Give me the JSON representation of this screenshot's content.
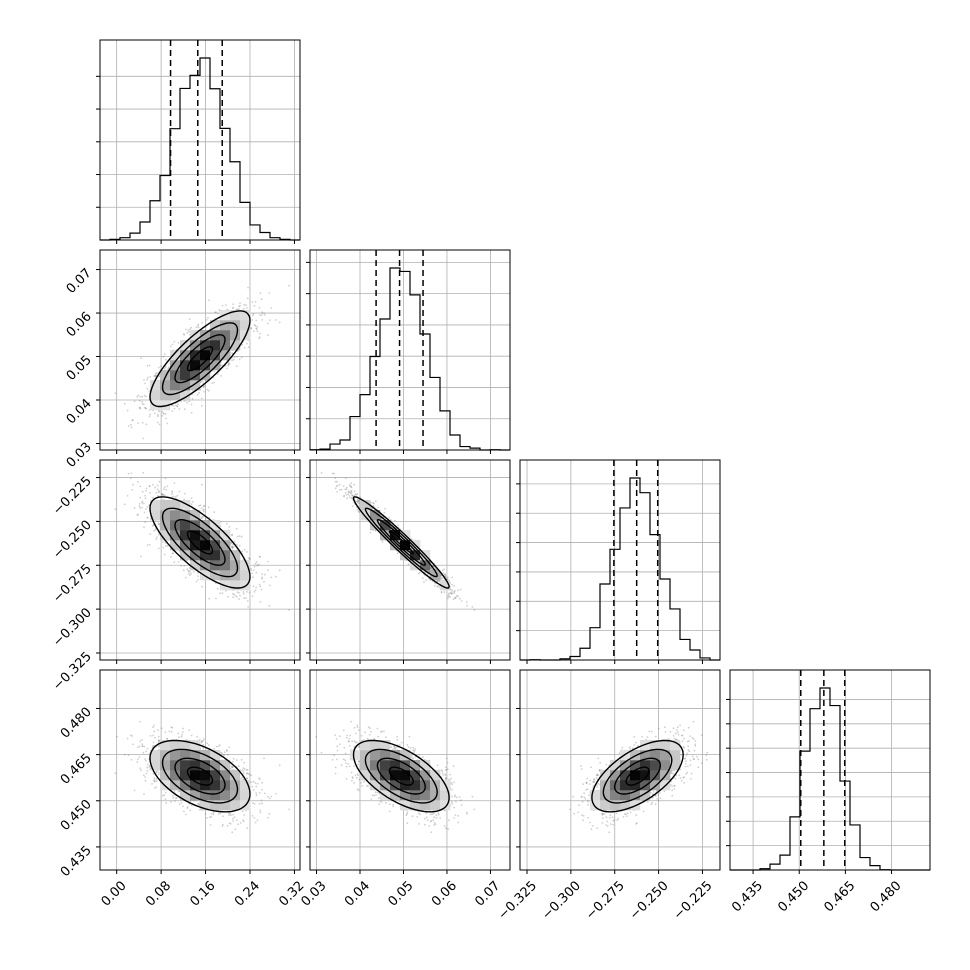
{
  "chart_data": {
    "type": "corner",
    "title": "",
    "parameters": [
      {
        "ticks": [
          "0.00",
          "0.08",
          "0.16",
          "0.24",
          "0.32"
        ],
        "tick_values": [
          0.0,
          0.08,
          0.16,
          0.24,
          0.32
        ],
        "range": [
          -0.03,
          0.33
        ],
        "mean": 0.15,
        "sd": 0.045,
        "quantiles": [
          0.097,
          0.146,
          0.19
        ]
      },
      {
        "ticks": [
          "0.03",
          "0.04",
          "0.05",
          "0.06",
          "0.07"
        ],
        "tick_values": [
          0.03,
          0.04,
          0.05,
          0.06,
          0.07
        ],
        "range": [
          0.0285,
          0.0745
        ],
        "mean": 0.0495,
        "sd": 0.0055,
        "quantiles": [
          0.0437,
          0.0491,
          0.0545
        ]
      },
      {
        "ticks": [
          "−0.325",
          "−0.300",
          "−0.275",
          "−0.250",
          "−0.225"
        ],
        "tick_values": [
          -0.325,
          -0.3,
          -0.275,
          -0.25,
          -0.225
        ],
        "range": [
          -0.329,
          -0.215
        ],
        "mean": -0.262,
        "sd": 0.013,
        "quantiles": [
          -0.2755,
          -0.2625,
          -0.2505
        ]
      },
      {
        "ticks": [
          "0.435",
          "0.450",
          "0.465",
          "0.480"
        ],
        "tick_values": [
          0.435,
          0.45,
          0.465,
          0.48
        ],
        "range": [
          0.4275,
          0.4925
        ],
        "mean": 0.458,
        "sd": 0.0058,
        "quantiles": [
          0.4505,
          0.458,
          0.4648
        ]
      }
    ],
    "correlations": [
      [
        1.0,
        0.8,
        -0.75,
        -0.5
      ],
      [
        0.8,
        1.0,
        -0.97,
        -0.6
      ],
      [
        -0.75,
        -0.97,
        1.0,
        0.6
      ],
      [
        -0.5,
        -0.6,
        0.6,
        1.0
      ]
    ],
    "grid": true,
    "xlabel": "",
    "ylabel": ""
  }
}
